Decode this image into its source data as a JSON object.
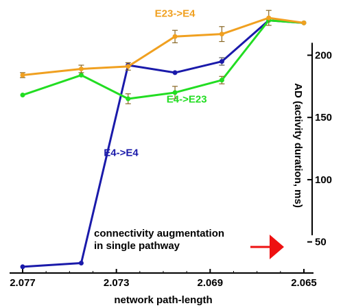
{
  "chart_data": {
    "type": "line",
    "xlabel": "network path-length",
    "ylabel": "AD (activity duration, ms)",
    "x_ticks": [
      "2.077",
      "2.073",
      "2.069",
      "2.065"
    ],
    "y_ticks": [
      "50",
      "100",
      "150",
      "200"
    ],
    "xlim": [
      2.077,
      2.065
    ],
    "ylim": [
      25,
      235
    ],
    "x": [
      2.077,
      2.0745,
      2.0725,
      2.0705,
      2.0685,
      2.0665,
      2.065
    ],
    "series": [
      {
        "name": "E23->E4",
        "color": "#f0a020",
        "values": [
          184,
          189,
          191,
          215,
          217,
          230,
          226
        ],
        "err": [
          2,
          3,
          3,
          5,
          6,
          6,
          0
        ],
        "label_x": 2.0705,
        "label_y": 231
      },
      {
        "name": "E4->E23",
        "color": "#22dd22",
        "values": [
          168,
          184,
          165,
          170,
          180,
          228,
          226
        ],
        "err": [
          0,
          0,
          4,
          5,
          3,
          0,
          0
        ],
        "label_x": 2.07,
        "label_y": 162
      },
      {
        "name": "E4->E4",
        "color": "#1a1aaa",
        "values": [
          30,
          33,
          192,
          186,
          195,
          228,
          226
        ],
        "err": [
          0,
          0,
          0,
          0,
          3,
          0,
          0
        ],
        "label_x": 2.0728,
        "label_y": 119
      }
    ],
    "annotation": {
      "line1": "connectivity augmentation",
      "line2": "in single pathway",
      "arrow_color": "#ee1111"
    }
  }
}
